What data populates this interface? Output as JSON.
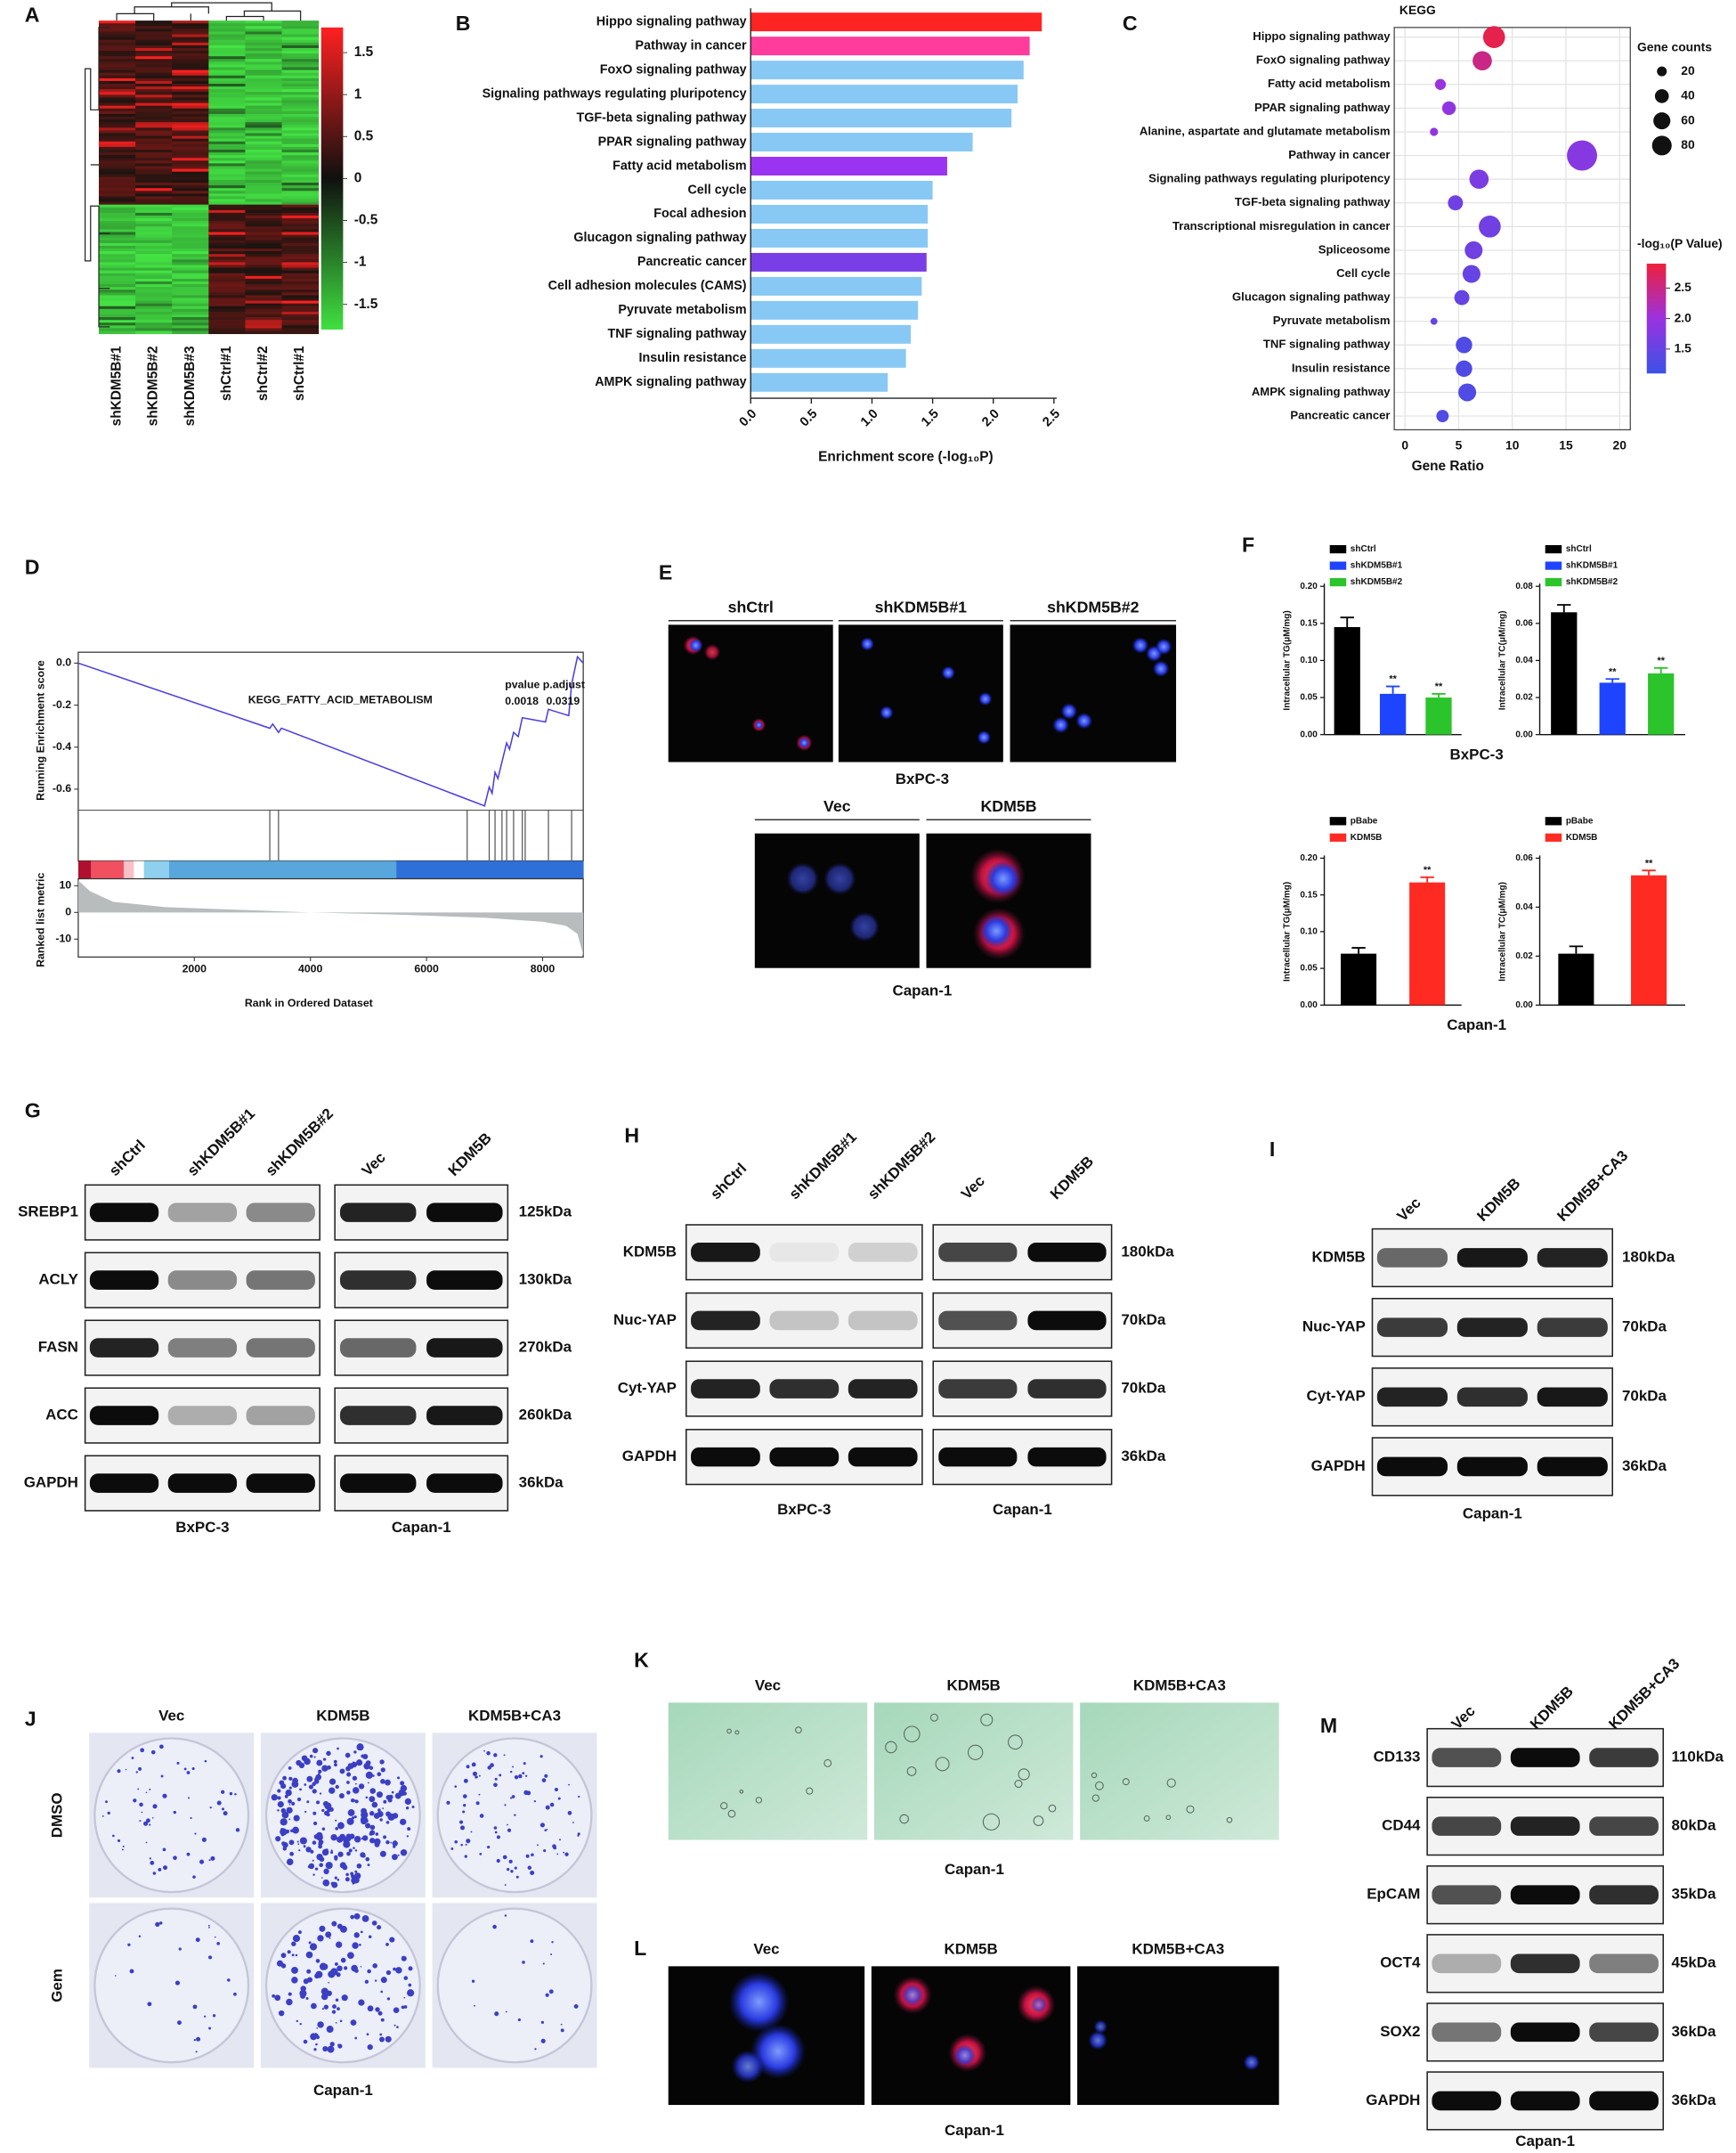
{
  "panel_labels": [
    "A",
    "B",
    "C",
    "D",
    "E",
    "F",
    "G",
    "H",
    "I",
    "J",
    "K",
    "L",
    "M"
  ],
  "chart_data": [
    {
      "type": "heatmap",
      "columns": [
        "shKDM5B#1",
        "shKDM5B#2",
        "shKDM5B#3",
        "shCtrl#1",
        "shCtrl#2",
        "shCtrl#1"
      ],
      "colorbar_lim": [
        -1.8,
        1.8
      ],
      "colorbar_ticks": [
        1.5,
        1,
        0.5,
        0,
        -0.5,
        -1,
        -1.5
      ]
    },
    {
      "type": "bar",
      "orientation": "horizontal",
      "categories": [
        "Hippo signaling pathway",
        "Pathway in cancer",
        "FoxO signaling pathway",
        "Signaling pathways regulating pluripotency",
        "TGF-beta signaling pathway",
        "PPAR signaling pathway",
        "Fatty acid metabolism",
        "Cell cycle",
        "Focal adhesion",
        "Glucagon signaling pathway",
        "Pancreatic cancer",
        "Cell adhesion molecules (CAMS)",
        "Pyruvate metabolism",
        "TNF signaling pathway",
        "Insulin resistance",
        "AMPK signaling pathway"
      ],
      "values": [
        2.4,
        2.3,
        2.25,
        2.2,
        2.15,
        1.83,
        1.62,
        1.5,
        1.46,
        1.46,
        1.45,
        1.41,
        1.38,
        1.32,
        1.28,
        1.13
      ],
      "colors": [
        "#ff2424",
        "#ff3c9c",
        "#88c8f4",
        "#88c8f4",
        "#88c8f4",
        "#88c8f4",
        "#9a34f2",
        "#88c8f4",
        "#88c8f4",
        "#88c8f4",
        "#7a3ee6",
        "#88c8f4",
        "#88c8f4",
        "#88c8f4",
        "#88c8f4",
        "#88c8f4"
      ],
      "xlim": [
        0,
        2.5
      ],
      "xticks": [
        {
          "value": 0,
          "label": "0.0"
        },
        0.5,
        {
          "value": 1,
          "label": "1.0"
        },
        1.5,
        {
          "value": 2,
          "label": "2.0"
        },
        2.5
      ],
      "xlabel": "Enrichment score (-log₁₀P)"
    },
    {
      "type": "scatter",
      "title": "KEGG",
      "categories": [
        "Hippo signaling pathway",
        "FoxO signaling pathway",
        "Fatty acid metabolism",
        "PPAR signaling pathway",
        "Alanine, aspartate and glutamate metabolism",
        "Pathway in cancer",
        "Signaling pathways regulating pluripotency",
        "TGF-beta signaling pathway",
        "Transcriptional misregulation in cancer",
        "Spliceosome",
        "Cell cycle",
        "Glucagon signaling pathway",
        "Pyruvate metabolism",
        "TNF signaling pathway",
        "Insulin resistance",
        "AMPK signaling pathway",
        "Pancreatic cancer"
      ],
      "x": [
        8.3,
        7.2,
        3.3,
        4.1,
        2.7,
        16.5,
        6.9,
        4.7,
        7.9,
        6.4,
        6.2,
        5.3,
        2.7,
        5.5,
        5.5,
        5.8,
        3.5
      ],
      "sizes": [
        100,
        77,
        25,
        39,
        14,
        189,
        77,
        47,
        100,
        66,
        66,
        47,
        10,
        56,
        56,
        66,
        32
      ],
      "color_values": [
        2.8,
        2.5,
        2.0,
        1.9,
        1.9,
        1.8,
        1.7,
        1.6,
        1.6,
        1.6,
        1.5,
        1.5,
        1.5,
        1.3,
        1.3,
        1.3,
        1.3
      ],
      "xlim": [
        -1,
        21
      ],
      "xticks": [
        0,
        5,
        10,
        15,
        20
      ],
      "xlabel": "Gene Ratio",
      "grid": true,
      "size_legend_title": "Gene counts",
      "size_legend": [
        20,
        40,
        60,
        80
      ],
      "color_legend_title": "-log₁₀(P Value)",
      "color_lim": [
        1.1,
        2.9
      ],
      "color_ticks": [
        2.5,
        {
          "value": 2,
          "label": "2.0"
        },
        1.5
      ],
      "colormap": [
        "#3b52e6",
        "#9b32e0",
        "#ee1f3c"
      ]
    },
    {
      "type": "gsea",
      "color": "#4b3fe0",
      "x": [
        0,
        3300,
        3350,
        3450,
        3500,
        7000,
        7080,
        7130,
        7180,
        7230,
        7300,
        7380,
        7430,
        7500,
        7580,
        7650,
        8050,
        8100,
        8450,
        8500,
        8600,
        8700
      ],
      "values": [
        0,
        -0.31,
        -0.29,
        -0.33,
        -0.31,
        -0.68,
        -0.59,
        -0.62,
        -0.52,
        -0.55,
        -0.47,
        -0.38,
        -0.41,
        -0.33,
        -0.35,
        -0.26,
        -0.28,
        -0.22,
        -0.25,
        -0.1,
        0.03,
        0
      ],
      "hits": [
        3300,
        3450,
        6700,
        7080,
        7180,
        7300,
        7380,
        7500,
        7650,
        7700,
        8100,
        8500
      ],
      "xlim": [
        0,
        8700
      ],
      "xticks": [
        2000,
        4000,
        6000,
        8000
      ],
      "ylim": [
        -0.7,
        0.052
      ],
      "yticks": [
        {
          "value": 0,
          "label": "0.0"
        },
        -0.2,
        -0.4,
        -0.6
      ],
      "metric_x": [
        0,
        200,
        600,
        1500,
        3000,
        4000,
        5500,
        7000,
        8000,
        8400,
        8600,
        8700
      ],
      "metric_values": [
        12,
        8,
        4,
        2,
        0.8,
        0,
        -0.8,
        -2,
        -3.5,
        -5,
        -8,
        -16
      ],
      "metric_ylim": [
        -16.7,
        12.6
      ],
      "metric_yticks": [
        10,
        0,
        -10
      ],
      "ylabel": "Running Enrichment score",
      "metric_ylabel": "Ranked list metric",
      "xlabel": "Rank in Ordered Dataset",
      "gene_set": "KEGG_FATTY_ACID_METABOLISM",
      "stats_header": "pvalue p.adjust",
      "pvalue": 0.0018,
      "p_adjust": 0.0319
    },
    {
      "type": "bar",
      "ylabel": "Intracellular TG(μM/mg)",
      "ylim": [
        0,
        0.2
      ],
      "yticks": [
        {
          "value": 0,
          "label": "0.00"
        },
        0.05,
        {
          "value": 0.1,
          "label": "0.10"
        },
        0.15,
        {
          "value": 0.2,
          "label": "0.20"
        }
      ],
      "series": [
        {
          "name": "shCtrl",
          "color": "#000000",
          "values": [
            0.145
          ],
          "errors": [
            0.013
          ]
        },
        {
          "name": "shKDM5B#1",
          "color": "#1f44ff",
          "values": [
            0.055
          ],
          "errors": [
            0.01
          ],
          "significance": "**"
        },
        {
          "name": "shKDM5B#2",
          "color": "#2bc42b",
          "values": [
            0.05
          ],
          "errors": [
            0.005
          ],
          "significance": "**"
        }
      ],
      "group_label": "BxPC-3"
    },
    {
      "type": "bar",
      "ylabel": "Intracellular TC(μM/mg)",
      "ylim": [
        0,
        0.08
      ],
      "yticks": [
        {
          "value": 0,
          "label": "0.00"
        },
        0.02,
        0.04,
        0.06,
        0.08
      ],
      "series": [
        {
          "name": "shCtrl",
          "color": "#000000",
          "values": [
            0.066
          ],
          "errors": [
            0.004
          ]
        },
        {
          "name": "shKDM5B#1",
          "color": "#1f44ff",
          "values": [
            0.028
          ],
          "errors": [
            0.002
          ],
          "significance": "**"
        },
        {
          "name": "shKDM5B#2",
          "color": "#2bc42b",
          "values": [
            0.033
          ],
          "errors": [
            0.003
          ],
          "significance": "**"
        }
      ]
    },
    {
      "type": "bar",
      "ylabel": "Intracellular TG(μM/mg)",
      "ylim": [
        0,
        0.2
      ],
      "yticks": [
        {
          "value": 0,
          "label": "0.00"
        },
        0.05,
        {
          "value": 0.1,
          "label": "0.10"
        },
        0.15,
        {
          "value": 0.2,
          "label": "0.20"
        }
      ],
      "series": [
        {
          "name": "pBabe",
          "color": "#000000",
          "values": [
            0.07
          ],
          "errors": [
            0.008
          ]
        },
        {
          "name": "KDM5B",
          "color": "#ff2a22",
          "values": [
            0.167
          ],
          "errors": [
            0.007
          ],
          "significance": "**"
        }
      ],
      "group_label": "Capan-1"
    },
    {
      "type": "bar",
      "ylabel": "Intracellular TC(μM/mg)",
      "ylim": [
        0,
        0.06
      ],
      "yticks": [
        {
          "value": 0,
          "label": "0.00"
        },
        0.02,
        0.04,
        0.06
      ],
      "series": [
        {
          "name": "pBabe",
          "color": "#000000",
          "values": [
            0.021
          ],
          "errors": [
            0.003
          ]
        },
        {
          "name": "KDM5B",
          "color": "#ff2a22",
          "values": [
            0.053
          ],
          "errors": [
            0.002
          ],
          "significance": "**"
        }
      ]
    }
  ],
  "figure_e": {
    "top": {
      "columns": [
        "shCtrl",
        "shKDM5B#1",
        "shKDM5B#2"
      ],
      "cell_line": "BxPC-3"
    },
    "bottom": {
      "columns": [
        "Vec",
        "KDM5B"
      ],
      "cell_line": "Capan-1"
    }
  },
  "blots": {
    "G": {
      "columns": [
        [
          "shCtrl",
          "shKDM5B#1",
          "shKDM5B#2"
        ],
        [
          "Vec",
          "KDM5B"
        ]
      ],
      "groups": [
        "BxPC-3",
        "Capan-1"
      ],
      "rows": [
        {
          "name": "SREBP1",
          "size": "125kDa",
          "bands": [
            [
              1,
              0.35,
              0.45
            ],
            [
              0.9,
              1
            ]
          ]
        },
        {
          "name": "ACLY",
          "size": "130kDa",
          "bands": [
            [
              1,
              0.45,
              0.55
            ],
            [
              0.85,
              1
            ]
          ]
        },
        {
          "name": "FASN",
          "size": "270kDa",
          "bands": [
            [
              0.9,
              0.5,
              0.55
            ],
            [
              0.6,
              0.95
            ]
          ]
        },
        {
          "name": "ACC",
          "size": "260kDa",
          "bands": [
            [
              1,
              0.3,
              0.35
            ],
            [
              0.85,
              0.95
            ]
          ]
        },
        {
          "name": "GAPDH",
          "size": "36kDa",
          "bands": [
            [
              1,
              1,
              1
            ],
            [
              1,
              1
            ]
          ]
        }
      ]
    },
    "H": {
      "columns": [
        [
          "shCtrl",
          "shKDM5B#1",
          "shKDM5B#2"
        ],
        [
          "Vec",
          "KDM5B"
        ]
      ],
      "groups": [
        "BxPC-3",
        "Capan-1"
      ],
      "rows": [
        {
          "name": "KDM5B",
          "size": "180kDa",
          "bands": [
            [
              0.95,
              0.05,
              0.15
            ],
            [
              0.75,
              1
            ]
          ]
        },
        {
          "name": "Nuc-YAP",
          "size": "70kDa",
          "bands": [
            [
              0.9,
              0.2,
              0.2
            ],
            [
              0.7,
              1
            ]
          ]
        },
        {
          "name": "Cyt-YAP",
          "size": "70kDa",
          "bands": [
            [
              0.9,
              0.85,
              0.9
            ],
            [
              0.8,
              0.85
            ]
          ]
        },
        {
          "name": "GAPDH",
          "size": "36kDa",
          "bands": [
            [
              1,
              1,
              1
            ],
            [
              1,
              1
            ]
          ]
        }
      ]
    },
    "I": {
      "columns": [
        [
          "Vec",
          "KDM5B",
          "KDM5B+CA3"
        ]
      ],
      "groups": [
        "Capan-1"
      ],
      "rows": [
        {
          "name": "KDM5B",
          "size": "180kDa",
          "bands": [
            [
              0.6,
              0.95,
              0.9
            ]
          ]
        },
        {
          "name": "Nuc-YAP",
          "size": "70kDa",
          "bands": [
            [
              0.8,
              0.9,
              0.8
            ]
          ]
        },
        {
          "name": "Cyt-YAP",
          "size": "70kDa",
          "bands": [
            [
              0.9,
              0.85,
              0.95
            ]
          ]
        },
        {
          "name": "GAPDH",
          "size": "36kDa",
          "bands": [
            [
              1,
              1,
              1
            ]
          ]
        }
      ]
    },
    "M": {
      "columns": [
        [
          "Vec",
          "KDM5B",
          "KDM5B+CA3"
        ]
      ],
      "groups": [
        "Capan-1"
      ],
      "rows": [
        {
          "name": "CD133",
          "size": "110kDa",
          "bands": [
            [
              0.7,
              1,
              0.8
            ]
          ]
        },
        {
          "name": "CD44",
          "size": "80kDa",
          "bands": [
            [
              0.75,
              0.9,
              0.75
            ]
          ]
        },
        {
          "name": "EpCAM",
          "size": "35kDa",
          "bands": [
            [
              0.7,
              1,
              0.85
            ]
          ]
        },
        {
          "name": "OCT4",
          "size": "45kDa",
          "bands": [
            [
              0.3,
              0.85,
              0.5
            ]
          ]
        },
        {
          "name": "SOX2",
          "size": "36kDa",
          "bands": [
            [
              0.55,
              1,
              0.75
            ]
          ]
        },
        {
          "name": "GAPDH",
          "size": "36kDa",
          "bands": [
            [
              1,
              1,
              1
            ]
          ]
        }
      ]
    }
  },
  "figure_j": {
    "columns": [
      "Vec",
      "KDM5B",
      "KDM5B+CA3"
    ],
    "rows": [
      "DMSO",
      "Gem"
    ],
    "cell_line": "Capan-1"
  },
  "figure_k": {
    "columns": [
      "Vec",
      "KDM5B",
      "KDM5B+CA3"
    ],
    "cell_line": "Capan-1"
  },
  "figure_l": {
    "columns": [
      "Vec",
      "KDM5B",
      "KDM5B+CA3"
    ],
    "cell_line": "Capan-1"
  }
}
